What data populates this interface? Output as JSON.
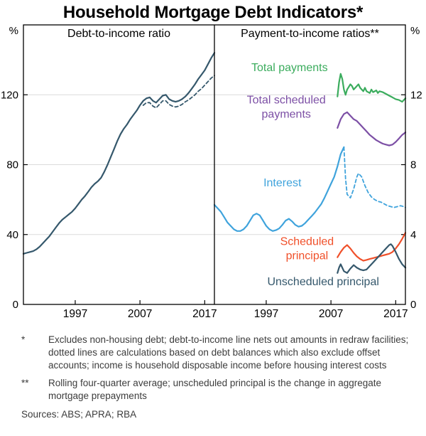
{
  "title": "Household Mortgage Debt Indicators*",
  "chart_data": [
    {
      "type": "line",
      "title": "Debt-to-income ratio",
      "side": "left",
      "ylabel": "%",
      "ylim": [
        0,
        160
      ],
      "yticks": [
        0,
        40,
        80,
        120
      ],
      "xlim": [
        1989,
        2018.5
      ],
      "xticks": [
        1997,
        2007,
        2017
      ],
      "grid": true,
      "series": [
        {
          "name": "Debt-to-income ratio",
          "color": "#35586C",
          "dash": false,
          "x_start": 1989,
          "x_step": 0.5,
          "y": [
            29,
            29.5,
            30,
            30.5,
            31.5,
            33,
            35,
            37,
            39,
            41.5,
            44,
            46.5,
            48.5,
            50,
            51.5,
            53,
            55,
            57.5,
            60,
            62,
            64.5,
            67,
            69,
            70.5,
            72.5,
            76,
            80,
            84.5,
            89,
            93.5,
            97.5,
            100.5,
            103,
            106,
            108.5,
            111,
            114,
            116.5,
            118,
            118.5,
            116.5,
            115.5,
            117.5,
            119.5,
            120,
            117.5,
            116.5,
            116,
            116.5,
            117.5,
            119,
            121,
            123.5,
            126,
            129,
            131.5,
            134,
            137.5,
            141,
            144
          ]
        },
        {
          "name": "Debt-to-income ratio (excluding offset accounts)",
          "color": "#35586C",
          "dash": true,
          "x_start": 2007.5,
          "x_step": 0.5,
          "y": [
            114,
            115.5,
            115.5,
            113.5,
            112.5,
            114.5,
            116.5,
            116.5,
            114.5,
            113.5,
            113,
            113.5,
            114.5,
            116,
            117,
            118.5,
            120,
            122,
            123.5,
            125.5,
            127.5,
            129.5,
            131
          ]
        }
      ],
      "labels": []
    },
    {
      "type": "line",
      "title": "Payment-to-income ratios**",
      "side": "right",
      "ylabel": "%",
      "ylim": [
        0,
        16
      ],
      "yticks": [
        0,
        4,
        8,
        12
      ],
      "xlim": [
        1989,
        2018.5
      ],
      "xticks": [
        1997,
        2007,
        2017
      ],
      "grid": true,
      "series": [
        {
          "name": "Interest",
          "color": "#3FA3DC",
          "dash": false,
          "x_start": 1989,
          "x_step": 0.5,
          "y": [
            5.7,
            5.5,
            5.3,
            5.0,
            4.7,
            4.5,
            4.3,
            4.2,
            4.2,
            4.3,
            4.5,
            4.8,
            5.1,
            5.2,
            5.1,
            4.8,
            4.5,
            4.3,
            4.2,
            4.25,
            4.35,
            4.55,
            4.8,
            4.9,
            4.75,
            4.55,
            4.45,
            4.5,
            4.65,
            4.85,
            5.05,
            5.25,
            5.5,
            5.75,
            6.1,
            6.5,
            6.9,
            7.3,
            7.9,
            8.6,
            9.0
          ]
        },
        {
          "name": "Interest (excluding offset accounts)",
          "color": "#3FA3DC",
          "dash": true,
          "x": [
            2009,
            2009.25,
            2009.5,
            2010,
            2010.5,
            2011,
            2011.25,
            2011.75,
            2012.25,
            2012.75,
            2013.25,
            2013.75,
            2014.25,
            2014.75,
            2015.25,
            2015.75,
            2016.25,
            2016.75,
            2017.25,
            2017.75,
            2018.25,
            2018.5
          ],
          "y": [
            9.0,
            7.2,
            6.3,
            6.1,
            6.6,
            7.3,
            7.5,
            7.3,
            6.8,
            6.4,
            6.15,
            6.0,
            5.9,
            5.85,
            5.75,
            5.65,
            5.6,
            5.55,
            5.6,
            5.65,
            5.6,
            5.55
          ]
        },
        {
          "name": "Total payments",
          "color": "#3BAC5D",
          "dash": false,
          "x": [
            2008,
            2008.25,
            2008.5,
            2008.75,
            2009,
            2009.25,
            2009.5,
            2010,
            2010.25,
            2010.5,
            2011,
            2011.25,
            2011.5,
            2012,
            2012.25,
            2012.5,
            2013,
            2013.25,
            2013.5,
            2014,
            2014.25,
            2014.5,
            2015,
            2015.5,
            2016,
            2016.5,
            2017,
            2017.5,
            2018,
            2018.5
          ],
          "y": [
            11.9,
            12.7,
            13.2,
            12.9,
            12.3,
            12.0,
            12.3,
            12.6,
            12.5,
            12.3,
            12.5,
            12.6,
            12.4,
            12.2,
            12.4,
            12.2,
            12.1,
            12.3,
            12.15,
            12.25,
            12.1,
            12.2,
            12.15,
            12.05,
            11.95,
            11.85,
            11.75,
            11.7,
            11.6,
            11.8
          ]
        },
        {
          "name": "Total scheduled payments",
          "color": "#7C4FA5",
          "dash": false,
          "x_start": 2008,
          "x_step": 0.5,
          "y": [
            10.1,
            10.6,
            10.9,
            11.0,
            10.8,
            10.6,
            10.5,
            10.3,
            10.1,
            9.9,
            9.7,
            9.55,
            9.4,
            9.3,
            9.2,
            9.15,
            9.1,
            9.15,
            9.3,
            9.5,
            9.7,
            9.85
          ]
        },
        {
          "name": "Scheduled principal",
          "color": "#F0502A",
          "dash": false,
          "x_start": 2008,
          "x_step": 0.5,
          "y": [
            2.7,
            3.0,
            3.25,
            3.4,
            3.2,
            2.95,
            2.75,
            2.6,
            2.5,
            2.55,
            2.6,
            2.65,
            2.7,
            2.75,
            2.8,
            2.85,
            2.9,
            3.0,
            3.2,
            3.45,
            3.75,
            4.1
          ]
        },
        {
          "name": "Unscheduled principal",
          "color": "#35586C",
          "dash": false,
          "x": [
            2008,
            2008.25,
            2008.5,
            2008.75,
            2009,
            2009.5,
            2010,
            2010.5,
            2011,
            2011.5,
            2012,
            2012.5,
            2013,
            2013.5,
            2014,
            2014.5,
            2015,
            2015.5,
            2016,
            2016.25,
            2016.5,
            2017,
            2017.5,
            2018,
            2018.5
          ],
          "y": [
            1.8,
            2.1,
            2.3,
            2.1,
            1.9,
            1.8,
            2.05,
            2.25,
            2.1,
            2.0,
            1.95,
            2.0,
            2.2,
            2.4,
            2.6,
            2.8,
            3.0,
            3.2,
            3.4,
            3.45,
            3.35,
            3.0,
            2.6,
            2.3,
            2.1
          ]
        }
      ],
      "labels": [
        {
          "lines": [
            "Total payments"
          ],
          "color": "#3BAC5D",
          "x": 2000.6,
          "y": 13.35
        },
        {
          "lines": [
            "Total scheduled",
            "payments"
          ],
          "color": "#7C4FA5",
          "x": 2000.1,
          "y": 11.5
        },
        {
          "lines": [
            "Interest"
          ],
          "color": "#3FA3DC",
          "x": 1999.5,
          "y": 6.75
        },
        {
          "lines": [
            "Scheduled",
            "principal"
          ],
          "color": "#F0502A",
          "x": 2003.3,
          "y": 3.4
        },
        {
          "lines": [
            "Unscheduled principal"
          ],
          "color": "#35586C",
          "x": 2005.8,
          "y": 1.1
        }
      ]
    }
  ],
  "footer": {
    "footnotes": [
      {
        "marker": "*",
        "text": "Excludes non-housing debt; debt-to-income line nets out amounts in redraw facilities; dotted lines are calculations based on debt balances which also exclude offset accounts; income is household disposable income before housing interest costs"
      },
      {
        "marker": "**",
        "text": "Rolling four-quarter average; unscheduled principal is the change in aggregate mortgage prepayments"
      }
    ],
    "sources": "Sources: ABS; APRA; RBA"
  }
}
